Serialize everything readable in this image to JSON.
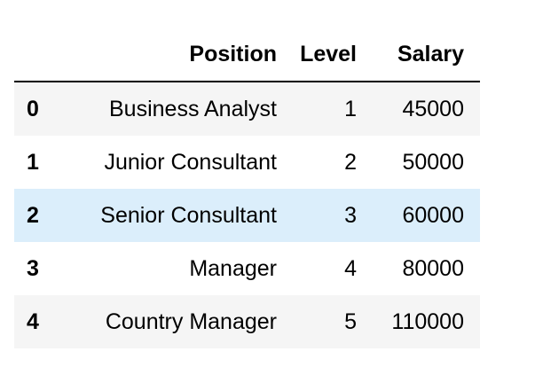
{
  "table": {
    "columns": [
      "Position",
      "Level",
      "Salary"
    ],
    "rows": [
      {
        "index": "0",
        "position": "Business Analyst",
        "level": "1",
        "salary": "45000"
      },
      {
        "index": "1",
        "position": "Junior Consultant",
        "level": "2",
        "salary": "50000"
      },
      {
        "index": "2",
        "position": "Senior Consultant",
        "level": "3",
        "salary": "60000"
      },
      {
        "index": "3",
        "position": "Manager",
        "level": "4",
        "salary": "80000"
      },
      {
        "index": "4",
        "position": "Country Manager",
        "level": "5",
        "salary": "110000"
      }
    ],
    "highlighted_row": 2,
    "colors": {
      "stripe": "#f5f5f5",
      "hover": "#dbeefb",
      "rule": "#000000"
    }
  }
}
